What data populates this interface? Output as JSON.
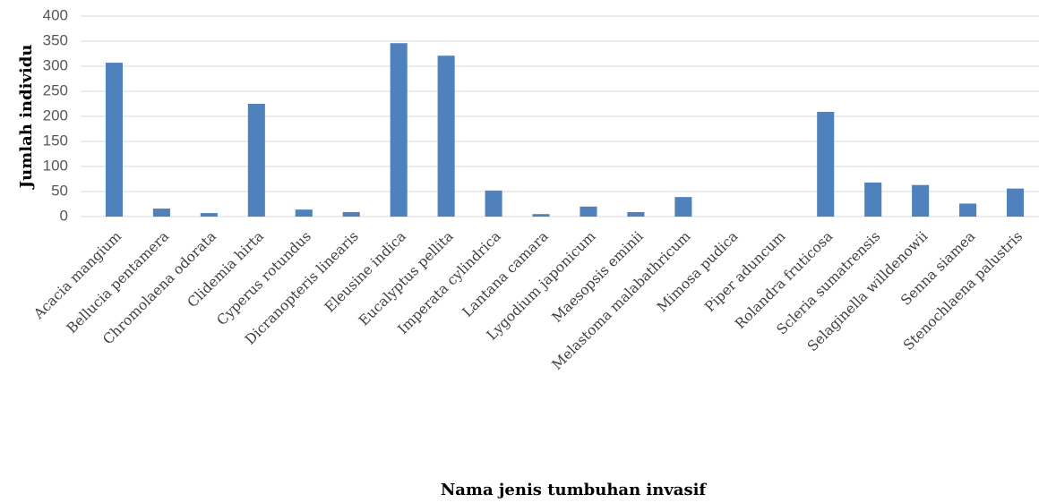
{
  "chart_data": {
    "type": "bar",
    "xlabel": "Nama jenis tumbuhan invasif",
    "ylabel": "Jumlah individu",
    "categories": [
      "Acacia mangium",
      "Bellucia pentamera",
      "Chromolaena odorata",
      "Clidemia hirta",
      "Cyperus rotundus",
      "Dicranopteris linearis",
      "Eleusine indica",
      "Eucalyptus pellita",
      "Imperata cylindrica",
      "Lantana camara",
      "Lygodium japonicum",
      "Maesopsis eminii",
      "Melastoma malabathricum",
      "Mimosa pudica",
      "Piper aduncum",
      "Rolandra fruticosa",
      "Scleria sumatrensis",
      "Selaginella willdenowii",
      "Senna siamea",
      "Stenochlaena palustris"
    ],
    "values": [
      307,
      16,
      7,
      225,
      14,
      9,
      346,
      321,
      52,
      5,
      20,
      9,
      39,
      0,
      0,
      209,
      68,
      63,
      26,
      56
    ],
    "color": "#4f81bd",
    "ylim": [
      0,
      400
    ],
    "yticks": [
      0,
      50,
      100,
      150,
      200,
      250,
      300,
      350,
      400
    ],
    "grid": true
  }
}
